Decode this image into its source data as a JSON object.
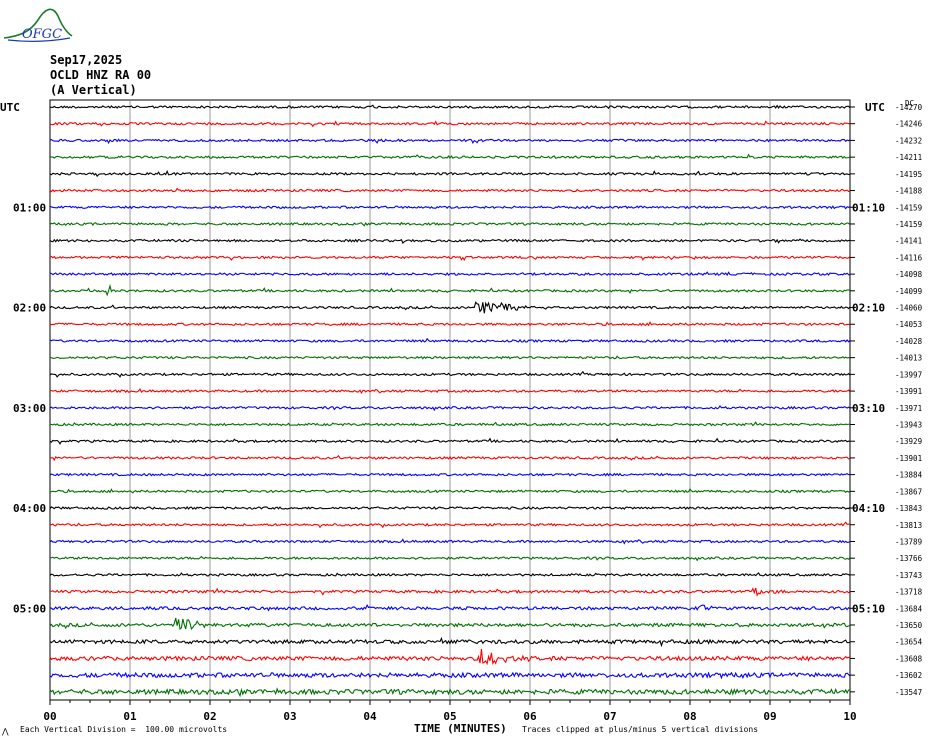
{
  "logo": {
    "text": "OFGC"
  },
  "header": {
    "date": "Sep17,2025",
    "station": "OCLD HNZ RA 00",
    "component": "(A Vertical)"
  },
  "utc_label_left": "UTC",
  "utc_label_right": "UTC",
  "offset_header": "DC",
  "footer": {
    "scale_marker": "⋀",
    "division_note": "Each Vertical Division =  100.00 microvolts",
    "xlabel": "TIME (MINUTES)",
    "clip_note": "Traces clipped at plus/minus 5 vertical divisions"
  },
  "colors": {
    "trace_cycle": [
      "#000000",
      "#ff0000",
      "#0000ff",
      "#007000"
    ],
    "grid": "#808080"
  },
  "chart_data": {
    "type": "line",
    "title": "",
    "xlabel": "TIME (MINUTES)",
    "xlim": [
      0,
      10
    ],
    "x_ticks": [
      "00",
      "01",
      "02",
      "03",
      "04",
      "05",
      "06",
      "07",
      "08",
      "09",
      "10"
    ],
    "trace_count": 36,
    "minutes_per_trace": 10,
    "left_hour_labels": [
      {
        "trace": 6,
        "text": "01:00"
      },
      {
        "trace": 12,
        "text": "02:00"
      },
      {
        "trace": 18,
        "text": "03:00"
      },
      {
        "trace": 24,
        "text": "04:00"
      },
      {
        "trace": 30,
        "text": "05:00"
      }
    ],
    "right_hour_labels": [
      {
        "trace": 6,
        "text": "01:10"
      },
      {
        "trace": 12,
        "text": "02:10"
      },
      {
        "trace": 18,
        "text": "03:10"
      },
      {
        "trace": 24,
        "text": "04:10"
      },
      {
        "trace": 30,
        "text": "05:10"
      }
    ],
    "dc_offsets": [
      "-14270",
      "-14246",
      "-14232",
      "-14211",
      "-14195",
      "-14188",
      "-14159",
      "-14159",
      "-14141",
      "-14116",
      "-14098",
      "-14099",
      "-14060",
      "-14053",
      "-14028",
      "-14013",
      "-13997",
      "-13991",
      "-13971",
      "-13943",
      "-13929",
      "-13901",
      "-13884",
      "-13867",
      "-13843",
      "-13813",
      "-13789",
      "-13766",
      "-13743",
      "-13718",
      "-13684",
      "-13650",
      "-13654",
      "-13608",
      "-13602",
      "-13547"
    ],
    "events": [
      {
        "trace": 11,
        "minute": 0.75,
        "amplitude": 6,
        "duration_min": 0.05
      },
      {
        "trace": 12,
        "minute": 5.35,
        "amplitude": 7,
        "duration_min": 0.9
      },
      {
        "trace": 31,
        "minute": 1.6,
        "amplitude": 9,
        "duration_min": 0.4
      },
      {
        "trace": 33,
        "minute": 5.4,
        "amplitude": 8,
        "duration_min": 0.6
      },
      {
        "trace": 30,
        "minute": 8.15,
        "amplitude": 4,
        "duration_min": 0.3
      },
      {
        "trace": 29,
        "minute": 8.85,
        "amplitude": 4,
        "duration_min": 0.3
      }
    ]
  }
}
